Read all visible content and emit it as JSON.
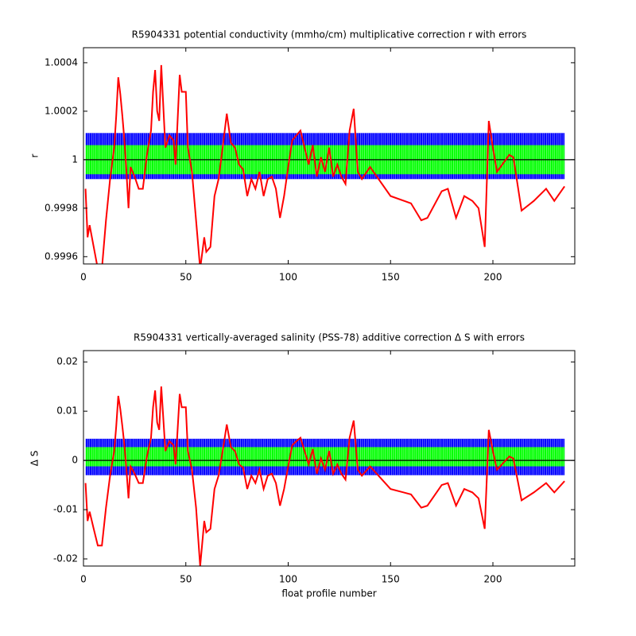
{
  "chart_data": [
    {
      "type": "line",
      "title": "R5904331 potential conductivity (mmho/cm) multiplicative correction r with errors",
      "ylabel": "r",
      "x": [
        1,
        2,
        3,
        5,
        7,
        9,
        11,
        13,
        15,
        16,
        17,
        18,
        19,
        20,
        21,
        22,
        23,
        25,
        27,
        29,
        31,
        33,
        34,
        35,
        36,
        37,
        38,
        39,
        40,
        42,
        44,
        45,
        47,
        48,
        50,
        51,
        53,
        55,
        57,
        59,
        60,
        62,
        64,
        66,
        68,
        70,
        72,
        74,
        76,
        78,
        80,
        82,
        84,
        86,
        88,
        90,
        92,
        94,
        96,
        98,
        100,
        102,
        104,
        106,
        108,
        110,
        112,
        114,
        116,
        118,
        120,
        122,
        124,
        126,
        128,
        130,
        132,
        134,
        136,
        140,
        150,
        160,
        165,
        168,
        175,
        178,
        182,
        186,
        190,
        193,
        196,
        198,
        200,
        202,
        208,
        210,
        214,
        220,
        226,
        230,
        235
      ],
      "series": [
        {
          "color": "#ff0000",
          "values": [
            0.99988,
            0.99968,
            0.99973,
            0.99964,
            0.99955,
            0.99955,
            0.99975,
            0.99992,
            1.00005,
            1.00018,
            1.00034,
            1.00027,
            1.00018,
            1.00008,
            0.99995,
            0.9998,
            0.99997,
            0.99993,
            0.99988,
            0.99988,
            1.00002,
            1.00012,
            1.00028,
            1.00037,
            1.0002,
            1.00016,
            1.00039,
            1.00022,
            1.00005,
            1.0001,
            1.00008,
            0.99998,
            1.00035,
            1.00028,
            1.00028,
            1.00005,
            0.99995,
            0.99975,
            0.99955,
            0.99968,
            0.99962,
            0.99964,
            0.99985,
            0.99992,
            1.00005,
            1.00019,
            1.00007,
            1.00005,
            0.99998,
            0.99996,
            0.99985,
            0.99992,
            0.99988,
            0.99995,
            0.99985,
            0.99992,
            0.99993,
            0.99988,
            0.99976,
            0.99985,
            0.99997,
            1.00008,
            1.0001,
            1.00012,
            1.00005,
            0.99998,
            1.00006,
            0.99993,
            1.00001,
            0.99995,
            1.00005,
            0.99993,
            0.99998,
            0.99993,
            0.9999,
            1.00012,
            1.00021,
            0.99995,
            0.99992,
            0.99997,
            0.99985,
            0.99982,
            0.99975,
            0.99976,
            0.99987,
            0.99988,
            0.99976,
            0.99985,
            0.99983,
            0.9998,
            0.99964,
            1.00016,
            1.00005,
            0.99995,
            1.00002,
            1.00001,
            0.99979,
            0.99983,
            0.99988,
            0.99983,
            0.99989
          ]
        }
      ],
      "bands": [
        {
          "color": "#0000ff",
          "lower": 0.99992,
          "upper": 1.00011
        },
        {
          "color": "#00ff00",
          "lower": 0.99994,
          "upper": 1.00006
        }
      ],
      "reference_line": 1,
      "xlim": [
        0,
        240
      ],
      "ylim": [
        0.99957,
        1.000462
      ],
      "xticks": [
        0,
        50,
        100,
        150,
        200
      ],
      "yticks": [
        0.9996,
        0.9998,
        1,
        1.0002,
        1.0004
      ]
    },
    {
      "type": "line",
      "title": "R5904331 vertically-averaged salinity (PSS-78) additive correction Δ S with errors",
      "xlabel": "float profile number",
      "ylabel": "Δ S",
      "x": [
        1,
        2,
        3,
        5,
        7,
        9,
        11,
        13,
        15,
        16,
        17,
        18,
        19,
        20,
        21,
        22,
        23,
        25,
        27,
        29,
        31,
        33,
        34,
        35,
        36,
        37,
        38,
        39,
        40,
        42,
        44,
        45,
        47,
        48,
        50,
        51,
        53,
        55,
        57,
        59,
        60,
        62,
        64,
        66,
        68,
        70,
        72,
        74,
        76,
        78,
        80,
        82,
        84,
        86,
        88,
        90,
        92,
        94,
        96,
        98,
        100,
        102,
        104,
        106,
        108,
        110,
        112,
        114,
        116,
        118,
        120,
        122,
        124,
        126,
        128,
        130,
        132,
        134,
        136,
        140,
        150,
        160,
        165,
        168,
        175,
        178,
        182,
        186,
        190,
        193,
        196,
        198,
        200,
        202,
        208,
        210,
        214,
        220,
        226,
        230,
        235
      ],
      "series": [
        {
          "color": "#ff0000",
          "values": [
            -0.0046,
            -0.0123,
            -0.0104,
            -0.0139,
            -0.0173,
            -0.0173,
            -0.0096,
            -0.0031,
            0.0019,
            0.0069,
            0.0131,
            0.0104,
            0.0069,
            0.0031,
            -0.0019,
            -0.0077,
            -0.0012,
            -0.0027,
            -0.0046,
            -0.0046,
            0.0008,
            0.0046,
            0.0108,
            0.0142,
            0.0077,
            0.0062,
            0.015,
            0.0085,
            0.0019,
            0.0039,
            0.0031,
            -0.0008,
            0.0135,
            0.0108,
            0.0108,
            0.0019,
            -0.0019,
            -0.0096,
            -0.0215,
            -0.0123,
            -0.0146,
            -0.0139,
            -0.0058,
            -0.0031,
            0.0019,
            0.0073,
            0.0027,
            0.0019,
            -0.0008,
            -0.0015,
            -0.0058,
            -0.0031,
            -0.0046,
            -0.0019,
            -0.0058,
            -0.0031,
            -0.0027,
            -0.0046,
            -0.0092,
            -0.0058,
            -0.0012,
            0.0031,
            0.0039,
            0.0046,
            0.0019,
            -0.0008,
            0.0023,
            -0.0027,
            0.0004,
            -0.0019,
            0.0019,
            -0.0027,
            -0.0008,
            -0.0027,
            -0.0039,
            0.0046,
            0.0081,
            -0.0019,
            -0.0031,
            -0.0012,
            -0.0058,
            -0.0069,
            -0.0096,
            -0.0092,
            -0.005,
            -0.0046,
            -0.0092,
            -0.0058,
            -0.0065,
            -0.0077,
            -0.0139,
            0.0062,
            0.0019,
            -0.0019,
            0.0008,
            0.0004,
            -0.0081,
            -0.0065,
            -0.0046,
            -0.0065,
            -0.0042
          ]
        }
      ],
      "bands": [
        {
          "color": "#0000ff",
          "lower": -0.003,
          "upper": 0.0044
        },
        {
          "color": "#00ff00",
          "lower": -0.0012,
          "upper": 0.0027
        }
      ],
      "reference_line": 0,
      "xlim": [
        0,
        240
      ],
      "ylim": [
        -0.02145,
        0.0223
      ],
      "xticks": [
        0,
        50,
        100,
        150,
        200
      ],
      "yticks": [
        -0.02,
        -0.01,
        0,
        0.01,
        0.02
      ]
    }
  ]
}
